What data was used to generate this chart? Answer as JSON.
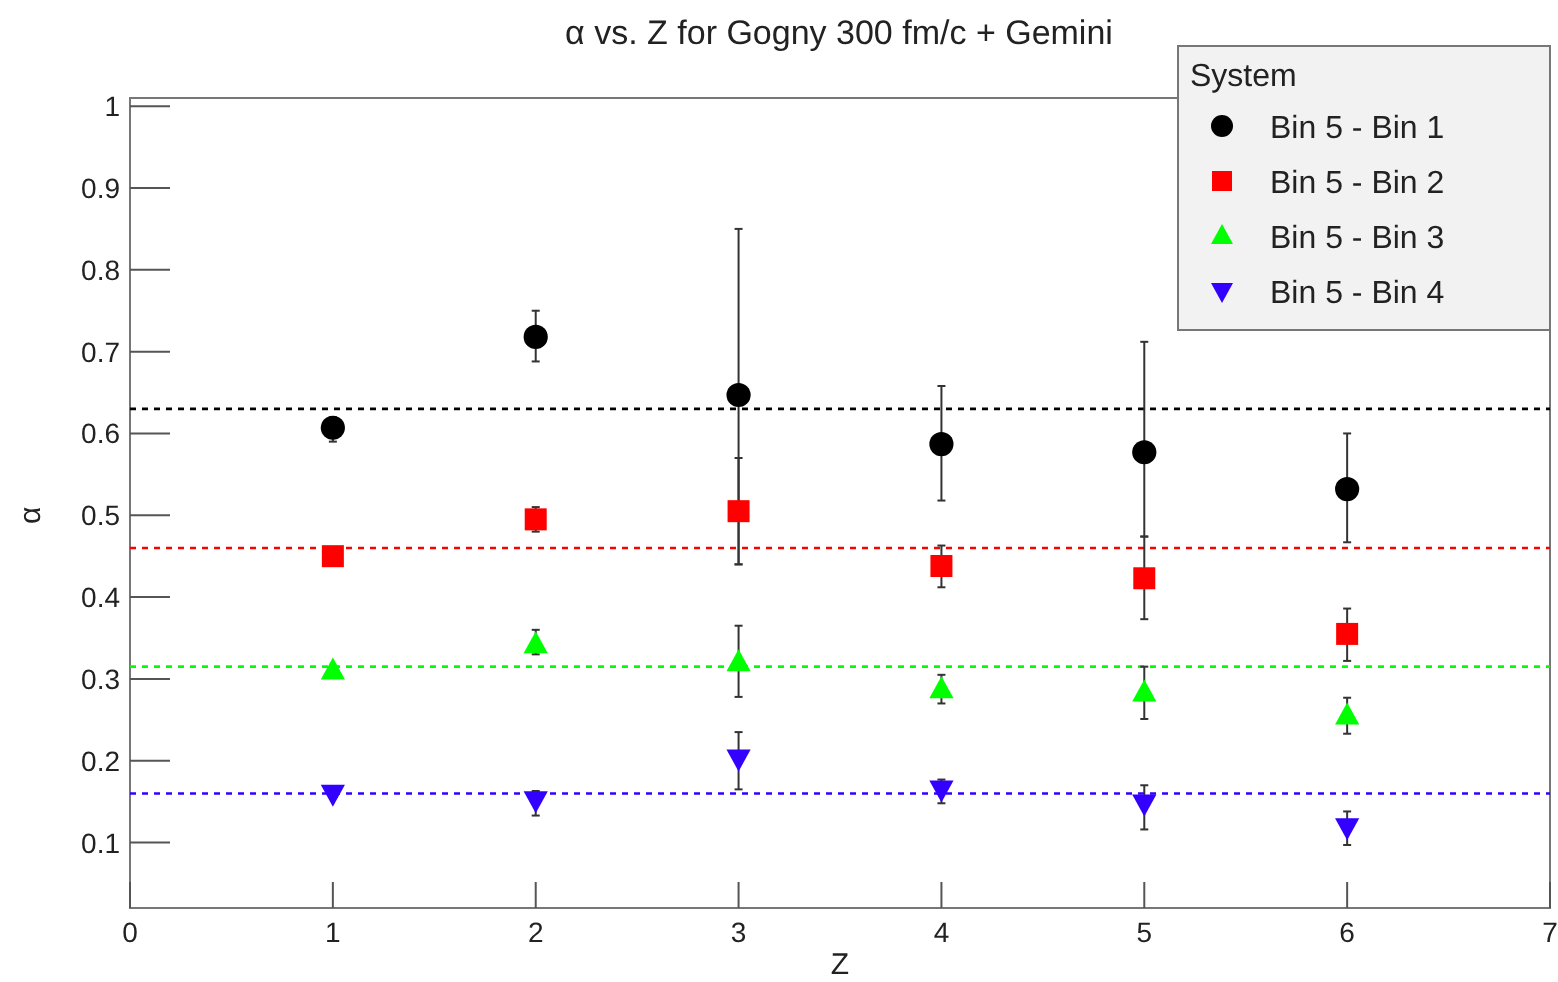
{
  "chart_data": {
    "type": "scatter",
    "title": "α vs. Z for Gogny 300 fm/c + Gemini",
    "xlabel": "Z",
    "ylabel": "α",
    "legend_title": "System",
    "legend": "top right",
    "grid": false,
    "x": [
      1,
      2,
      3,
      4,
      5,
      6
    ],
    "xlim": [
      0,
      7
    ],
    "xticks": [
      0,
      1,
      2,
      3,
      4,
      5,
      6,
      7
    ],
    "ylim": [
      0.02,
      1.01
    ],
    "yticks": [
      0.1,
      0.2,
      0.3,
      0.4,
      0.5,
      0.6,
      0.7,
      0.8,
      0.9,
      1
    ],
    "series": [
      {
        "name": "Bin 5 - Bin 1",
        "color": "#000000",
        "marker": "circle",
        "values": [
          0.607,
          0.718,
          0.647,
          0.587,
          0.577,
          0.532
        ],
        "errors": [
          [
            0.59,
            0.62
          ],
          [
            0.688,
            0.75
          ],
          [
            0.44,
            0.85
          ],
          [
            0.518,
            0.658
          ],
          [
            0.474,
            0.712
          ],
          [
            0.467,
            0.6
          ]
        ]
      },
      {
        "name": "Bin 5 - Bin 2",
        "color": "#ff0000",
        "marker": "square",
        "values": [
          0.45,
          0.495,
          0.505,
          0.438,
          0.423,
          0.355
        ],
        "errors": [
          null,
          [
            0.48,
            0.51
          ],
          [
            0.44,
            0.57
          ],
          [
            0.412,
            0.463
          ],
          [
            0.373,
            0.474
          ],
          [
            0.322,
            0.386
          ]
        ]
      },
      {
        "name": "Bin 5 - Bin 3",
        "color": "#00ff00",
        "marker": "triangle",
        "values": [
          0.31,
          0.342,
          0.32,
          0.287,
          0.283,
          0.255
        ],
        "errors": [
          null,
          [
            0.33,
            0.36
          ],
          [
            0.278,
            0.365
          ],
          [
            0.27,
            0.305
          ],
          [
            0.251,
            0.315
          ],
          [
            0.233,
            0.277
          ]
        ]
      },
      {
        "name": "Bin 5 - Bin 4",
        "color": "#3300ff",
        "marker": "triangle-down",
        "values": [
          0.16,
          0.152,
          0.203,
          0.165,
          0.148,
          0.119
        ],
        "errors": [
          null,
          [
            0.133,
            0.163
          ],
          [
            0.165,
            0.235
          ],
          [
            0.148,
            0.177
          ],
          [
            0.116,
            0.17
          ],
          [
            0.097,
            0.138
          ]
        ]
      }
    ],
    "ref_lines": [
      {
        "axis": "y",
        "value": 0.63,
        "color": "#000000",
        "line_style": "dashed"
      },
      {
        "axis": "y",
        "value": 0.46,
        "color": "#ff0000",
        "line_style": "dashed"
      },
      {
        "axis": "y",
        "value": 0.315,
        "color": "#00ff00",
        "line_style": "dashed"
      },
      {
        "axis": "y",
        "value": 0.16,
        "color": "#3300ff",
        "line_style": "dashed"
      }
    ]
  }
}
